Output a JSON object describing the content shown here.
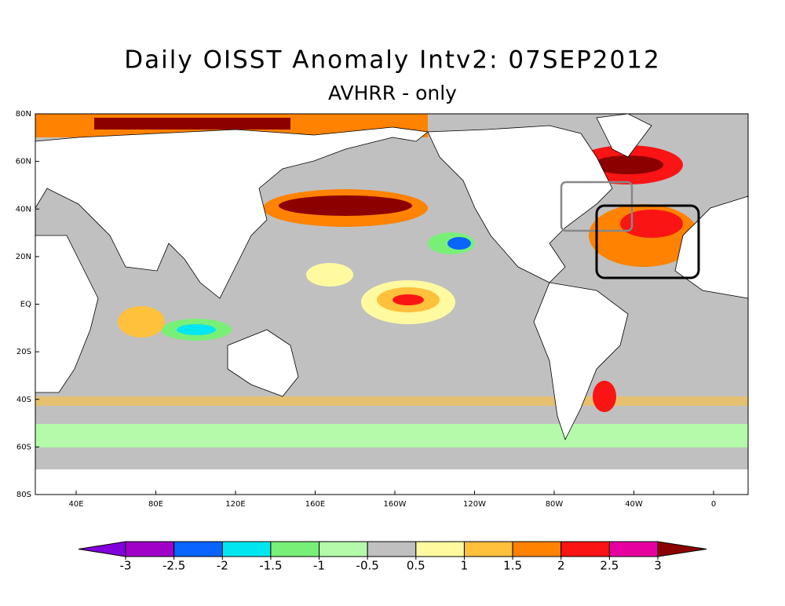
{
  "map": {
    "title": "Daily OISST Anomaly Intv2: 07SEP2012",
    "subtitle": "AVHRR - only",
    "lat_labels": [
      "80N",
      "60N",
      "40N",
      "20N",
      "EQ",
      "20S",
      "40S",
      "60S",
      "80S"
    ],
    "lon_labels": [
      "40E",
      "80E",
      "120E",
      "160E",
      "160W",
      "120W",
      "80W",
      "40W",
      "0"
    ],
    "colorbar": {
      "ticks": [
        -3,
        -2.5,
        -2,
        -1.5,
        -1,
        -0.5,
        0.5,
        1,
        1.5,
        2,
        2.5,
        3
      ],
      "colors": [
        "#8200dc",
        "#a000c8",
        "#0a64ff",
        "#00e6f0",
        "#78f078",
        "#b4faaa",
        "#c0c0c0",
        "#fffaa0",
        "#ffc03c",
        "#ff8200",
        "#fa1414",
        "#e600a0",
        "#8c0000"
      ]
    }
  }
}
